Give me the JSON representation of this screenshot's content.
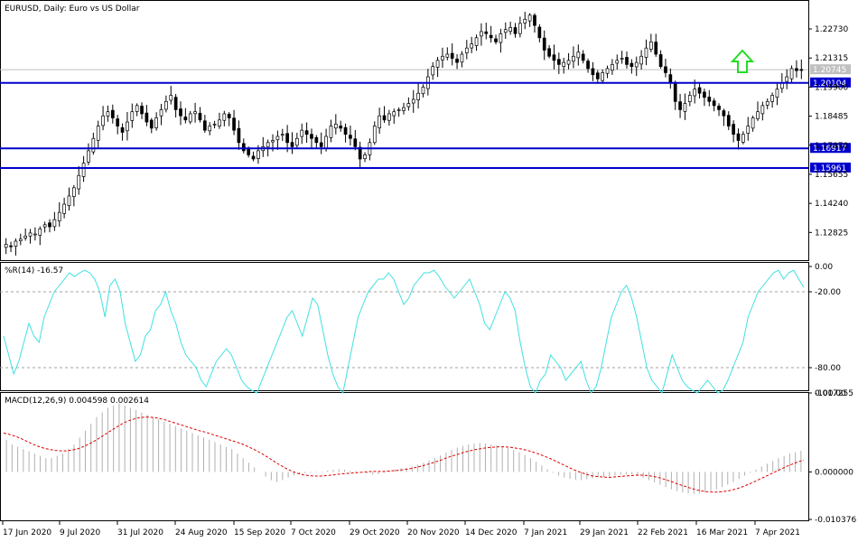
{
  "chart_data": [
    {
      "type": "candlestick",
      "title": "EURUSD, Daily:  Euro vs US Dollar",
      "ylim": [
        1.1152,
        1.2405
      ],
      "y_ticks": [
        "1.22730",
        "1.21315",
        "1.19900",
        "1.18485",
        "1.17070",
        "1.15655",
        "1.14240",
        "1.12825"
      ],
      "current_price": "1.20745",
      "levels": [
        {
          "label": "1.20104",
          "value": 1.20104,
          "color": "#0000cc"
        },
        {
          "label": "1.16917",
          "value": 1.16917,
          "color": "#0000cc"
        },
        {
          "label": "1.15961",
          "value": 1.15961,
          "color": "#0000cc"
        }
      ],
      "arrow": {
        "direction": "up",
        "color": "#22dd22"
      },
      "candles_closes": [
        1.1225,
        1.1215,
        1.124,
        1.125,
        1.1265,
        1.128,
        1.1275,
        1.13,
        1.132,
        1.131,
        1.1345,
        1.138,
        1.142,
        1.146,
        1.15,
        1.156,
        1.162,
        1.168,
        1.174,
        1.18,
        1.185,
        1.187,
        1.184,
        1.18,
        1.177,
        1.182,
        1.187,
        1.19,
        1.186,
        1.182,
        1.179,
        1.184,
        1.188,
        1.192,
        1.195,
        1.188,
        1.185,
        1.183,
        1.186,
        1.187,
        1.183,
        1.178,
        1.18,
        1.181,
        1.183,
        1.186,
        1.184,
        1.178,
        1.172,
        1.168,
        1.166,
        1.164,
        1.168,
        1.17,
        1.172,
        1.173,
        1.175,
        1.176,
        1.172,
        1.17,
        1.174,
        1.178,
        1.176,
        1.174,
        1.172,
        1.17,
        1.175,
        1.18,
        1.181,
        1.179,
        1.176,
        1.174,
        1.17,
        1.164,
        1.166,
        1.172,
        1.18,
        1.185,
        1.183,
        1.186,
        1.187,
        1.188,
        1.189,
        1.191,
        1.193,
        1.196,
        1.199,
        1.204,
        1.209,
        1.212,
        1.214,
        1.215,
        1.213,
        1.211,
        1.215,
        1.218,
        1.22,
        1.223,
        1.226,
        1.225,
        1.223,
        1.221,
        1.225,
        1.227,
        1.228,
        1.225,
        1.23,
        1.232,
        1.234,
        1.229,
        1.223,
        1.217,
        1.214,
        1.212,
        1.21,
        1.211,
        1.212,
        1.214,
        1.216,
        1.212,
        1.208,
        1.205,
        1.203,
        1.206,
        1.208,
        1.21,
        1.212,
        1.213,
        1.21,
        1.209,
        1.211,
        1.214,
        1.218,
        1.221,
        1.215,
        1.209,
        1.206,
        1.201,
        1.192,
        1.188,
        1.191,
        1.195,
        1.198,
        1.196,
        1.194,
        1.192,
        1.19,
        1.188,
        1.185,
        1.18,
        1.176,
        1.173,
        1.176,
        1.18,
        1.184,
        1.187,
        1.19,
        1.192,
        1.195,
        1.198,
        1.201,
        1.204,
        1.208,
        1.207,
        1.2075
      ],
      "x_labels": [
        "17 Jun 2020",
        "9 Jul 2020",
        "31 Jul 2020",
        "24 Aug 2020",
        "15 Sep 2020",
        "7 Oct 2020",
        "29 Oct 2020",
        "20 Nov 2020",
        "14 Dec 2020",
        "7 Jan 2021",
        "29 Jan 2021",
        "22 Feb 2021",
        "16 Mar 2021",
        "7 Apr 2021"
      ]
    },
    {
      "type": "line",
      "title": "%R(14) -16.57",
      "name": "%R(14)",
      "ylim": [
        -100,
        0
      ],
      "y_ticks": [
        "0.00",
        "-20.00",
        "-80.00",
        "-100.00"
      ],
      "levels": [
        -20,
        -80
      ],
      "color": "#40e0e0",
      "values": [
        -55,
        -70,
        -85,
        -75,
        -60,
        -45,
        -55,
        -60,
        -40,
        -30,
        -20,
        -15,
        -10,
        -5,
        -8,
        -5,
        -3,
        -5,
        -10,
        -20,
        -40,
        -15,
        -10,
        -20,
        -45,
        -60,
        -75,
        -70,
        -55,
        -50,
        -35,
        -30,
        -20,
        -35,
        -45,
        -60,
        -70,
        -75,
        -80,
        -90,
        -95,
        -85,
        -75,
        -70,
        -65,
        -70,
        -80,
        -90,
        -95,
        -98,
        -100,
        -90,
        -80,
        -70,
        -60,
        -50,
        -40,
        -35,
        -45,
        -55,
        -40,
        -25,
        -30,
        -50,
        -70,
        -85,
        -95,
        -100,
        -80,
        -60,
        -40,
        -30,
        -20,
        -15,
        -10,
        -10,
        -5,
        -10,
        -20,
        -30,
        -25,
        -15,
        -10,
        -5,
        -5,
        -3,
        -8,
        -15,
        -20,
        -25,
        -20,
        -15,
        -10,
        -20,
        -30,
        -45,
        -50,
        -40,
        -30,
        -20,
        -25,
        -35,
        -60,
        -80,
        -95,
        -100,
        -90,
        -85,
        -70,
        -75,
        -80,
        -90,
        -85,
        -80,
        -75,
        -90,
        -100,
        -95,
        -80,
        -60,
        -40,
        -30,
        -20,
        -15,
        -25,
        -40,
        -60,
        -80,
        -90,
        -95,
        -100,
        -85,
        -70,
        -80,
        -90,
        -95,
        -98,
        -100,
        -95,
        -90,
        -95,
        -100,
        -98,
        -90,
        -80,
        -70,
        -60,
        -40,
        -30,
        -20,
        -15,
        -10,
        -5,
        -3,
        -10,
        -5,
        -3,
        -10,
        -16.57
      ]
    },
    {
      "type": "bar+line",
      "title": "MACD(12,26,9) 0.004598 0.002614",
      "name": "MACD(12,26,9)",
      "ylim": [
        -0.010376,
        0.017255
      ],
      "y_ticks": [
        "0.017255",
        "0.000000",
        "-0.010376"
      ],
      "histogram_color": "#b0b0b0",
      "signal_color": "#dd0000",
      "histogram": [
        0.007,
        0.006,
        0.0055,
        0.005,
        0.0045,
        0.004,
        0.0035,
        0.003,
        0.003,
        0.0035,
        0.004,
        0.005,
        0.006,
        0.0075,
        0.009,
        0.0105,
        0.012,
        0.013,
        0.014,
        0.0145,
        0.015,
        0.0145,
        0.014,
        0.0135,
        0.013,
        0.0125,
        0.012,
        0.0115,
        0.011,
        0.0105,
        0.01,
        0.0095,
        0.009,
        0.0085,
        0.008,
        0.0075,
        0.007,
        0.0065,
        0.006,
        0.0055,
        0.005,
        0.004,
        0.003,
        0.002,
        0.001,
        0.0,
        -0.001,
        -0.0018,
        -0.0022,
        -0.0018,
        -0.0012,
        -0.0008,
        -0.0005,
        -0.0003,
        -0.0002,
        -0.0001,
        0.0001,
        0.0003,
        0.0005,
        0.0006,
        0.0005,
        0.0003,
        0.0002,
        0.0,
        -0.0003,
        -0.0006,
        -0.0005,
        -0.0002,
        0.0002,
        0.0006,
        0.0008,
        0.0009,
        0.0012,
        0.0016,
        0.002,
        0.0025,
        0.003,
        0.0036,
        0.0042,
        0.0048,
        0.0053,
        0.0057,
        0.006,
        0.0062,
        0.0063,
        0.0062,
        0.006,
        0.0058,
        0.0055,
        0.0052,
        0.0048,
        0.0043,
        0.0037,
        0.003,
        0.0022,
        0.0014,
        0.0006,
        -0.0002,
        -0.0008,
        -0.0012,
        -0.0015,
        -0.0017,
        -0.0018,
        -0.0016,
        -0.0014,
        -0.0012,
        -0.0011,
        -0.001,
        -0.0008,
        -0.0006,
        -0.0005,
        -0.0006,
        -0.0009,
        -0.0013,
        -0.0018,
        -0.0023,
        -0.0028,
        -0.0033,
        -0.0038,
        -0.0042,
        -0.0045,
        -0.0047,
        -0.0048,
        -0.0047,
        -0.0045,
        -0.0042,
        -0.0038,
        -0.0033,
        -0.0028,
        -0.0022,
        -0.0015,
        -0.0008,
        -0.0002,
        0.0005,
        0.0012,
        0.0018,
        0.0024,
        0.003,
        0.0035,
        0.004,
        0.0043,
        0.0046
      ],
      "signal": [
        0.0085,
        0.0082,
        0.0078,
        0.0073,
        0.0067,
        0.0061,
        0.0056,
        0.0052,
        0.0049,
        0.0047,
        0.0046,
        0.0046,
        0.0048,
        0.0051,
        0.0056,
        0.0062,
        0.0069,
        0.0077,
        0.0085,
        0.0093,
        0.0101,
        0.0108,
        0.0113,
        0.0117,
        0.0119,
        0.012,
        0.0119,
        0.0117,
        0.0114,
        0.011,
        0.0106,
        0.0102,
        0.0098,
        0.0094,
        0.009,
        0.0087,
        0.0083,
        0.0079,
        0.0075,
        0.0071,
        0.0067,
        0.0063,
        0.0058,
        0.0052,
        0.0046,
        0.0039,
        0.0031,
        0.0023,
        0.0015,
        0.0008,
        0.0002,
        -0.0003,
        -0.0006,
        -0.0008,
        -0.0009,
        -0.0009,
        -0.0008,
        -0.0007,
        -0.0005,
        -0.0004,
        -0.0003,
        -0.0002,
        -0.0001,
        0.0,
        0.0001,
        0.0001,
        0.0001,
        0.0002,
        0.0003,
        0.0004,
        0.0006,
        0.0008,
        0.0011,
        0.0014,
        0.0018,
        0.0022,
        0.0026,
        0.0031,
        0.0035,
        0.0039,
        0.0043,
        0.0046,
        0.0049,
        0.0051,
        0.0053,
        0.0054,
        0.0055,
        0.0055,
        0.0054,
        0.0052,
        0.005,
        0.0047,
        0.0043,
        0.0039,
        0.0034,
        0.0029,
        0.0023,
        0.0017,
        0.0011,
        0.0005,
        0.0,
        -0.0004,
        -0.0008,
        -0.001,
        -0.0011,
        -0.0012,
        -0.0011,
        -0.001,
        -0.0009,
        -0.0008,
        -0.0007,
        -0.0007,
        -0.0008,
        -0.001,
        -0.0013,
        -0.0017,
        -0.0021,
        -0.0026,
        -0.003,
        -0.0034,
        -0.0038,
        -0.0041,
        -0.0043,
        -0.0044,
        -0.0044,
        -0.0043,
        -0.0041,
        -0.0038,
        -0.0034,
        -0.0029,
        -0.0024,
        -0.0018,
        -0.0012,
        -0.0006,
        0.0,
        0.0006,
        0.0012,
        0.0017,
        0.0022,
        0.0026
      ]
    }
  ]
}
